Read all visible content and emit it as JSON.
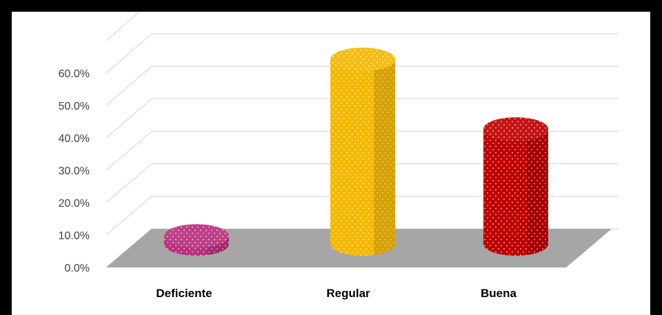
{
  "chart_data": {
    "type": "bar",
    "style": "3d-cylinder",
    "categories": [
      "Deficiente",
      "Regular",
      "Buena"
    ],
    "values": [
      2.5,
      57.0,
      35.5
    ],
    "colors": [
      "#b8307e",
      "#f5b800",
      "#c00000"
    ],
    "y_ticks": [
      "0.0%",
      "10.0%",
      "20.0%",
      "30.0%",
      "40.0%",
      "50.0%",
      "60.0%"
    ],
    "ylim": [
      0,
      60
    ],
    "unit": "%",
    "grid": true,
    "floor_color": "#a6a6a6"
  }
}
